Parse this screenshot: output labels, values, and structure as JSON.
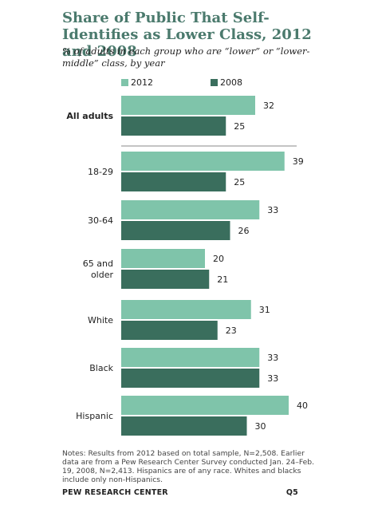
{
  "title": "Share of Public That Self-Identifies as Lower Class, 2012 and 2008",
  "subtitle": "% of adults in each group who are “lower” or “lower-middle” class, by year",
  "colors": {
    "s2012": "#7fc4aa",
    "s2008": "#3a6e5d",
    "rule": "#888888",
    "title": "#4b7a6d"
  },
  "chart_data": {
    "type": "bar",
    "orientation": "horizontal",
    "categories": [
      "All adults",
      "18-29",
      "30-64",
      "65 and older",
      "White",
      "Black",
      "Hispanic"
    ],
    "series": [
      {
        "name": "2012",
        "values": [
          32,
          39,
          33,
          20,
          31,
          33,
          40
        ]
      },
      {
        "name": "2008",
        "values": [
          25,
          25,
          26,
          21,
          23,
          33,
          30
        ]
      }
    ],
    "legend_position": "top",
    "grid": false
  },
  "notes": "Notes: Results from 2012 based on total sample, N=2,508. Earlier data are from a Pew Research Center Survey conducted Jan. 24–Feb. 19, 2008, N=2,413. Hispanics are of any race. Whites and blacks include only non-Hispanics.",
  "footer": {
    "source": "PEW RESEARCH CENTER",
    "question": "Q5"
  }
}
